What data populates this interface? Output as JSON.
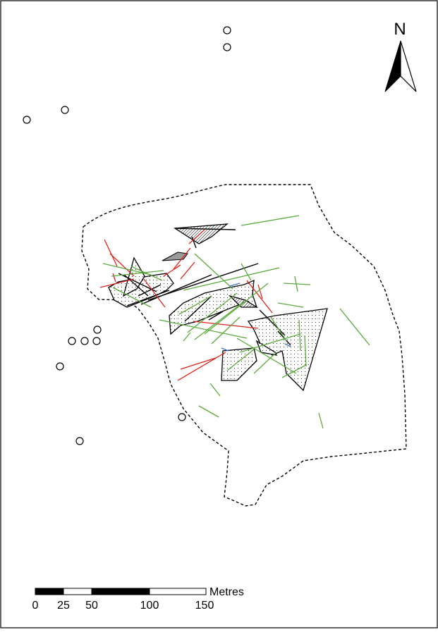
{
  "north_arrow": {
    "label": "N"
  },
  "scale_bar": {
    "unit_label": "Metres",
    "ticks": [
      "0",
      "25",
      "50",
      "100",
      "150"
    ]
  },
  "legend_colors": {
    "green_lines": "#5aaa3c",
    "red_lines": "#e0231b",
    "blue_lines": "#3a6fd0",
    "outline": "#000000",
    "shaded_fill": "#9a9a9a"
  }
}
